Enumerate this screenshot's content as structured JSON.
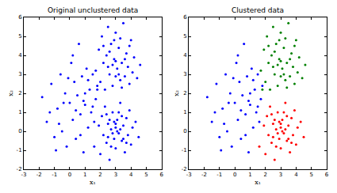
{
  "chart_data": [
    {
      "type": "scatter",
      "title": "Original unclustered data",
      "x_label": "x₁",
      "y_label": "x₂",
      "xlim": [
        -3,
        6
      ],
      "ylim": [
        -2,
        6
      ],
      "xticks": [
        -3,
        -2,
        -1,
        0,
        1,
        2,
        3,
        4,
        5,
        6
      ],
      "yticks": [
        -2,
        -1,
        0,
        1,
        2,
        3,
        4,
        5,
        6
      ],
      "grid": false,
      "series": [
        {
          "color": "#0000ff",
          "marker": "circle",
          "x": [
            -1.8,
            -1.5,
            -1.2,
            -1.0,
            -0.8,
            -0.6,
            -0.5,
            -0.3,
            -0.2,
            0.0,
            0.1,
            0.2,
            0.3,
            0.4,
            0.5,
            0.6,
            0.7,
            0.8,
            0.9,
            1.0,
            1.1,
            1.2,
            1.3,
            1.4,
            1.5,
            1.6,
            1.7,
            1.8,
            -0.9,
            -0.1,
            0.4,
            1.0,
            -1.3,
            0.7,
            1.5,
            -0.4,
            0.2,
            1.2,
            -0.7,
            0.9
          ],
          "y": [
            1.8,
            0.5,
            2.5,
            -0.3,
            1.2,
            3.0,
            0.0,
            2.0,
            -0.8,
            1.5,
            3.6,
            0.6,
            2.6,
            -0.4,
            1.9,
            4.6,
            0.9,
            2.9,
            -1.1,
            1.4,
            3.3,
            0.2,
            2.2,
            1.0,
            3.0,
            0.5,
            1.7,
            2.4,
            -1.0,
            2.8,
            1.1,
            2.0,
            1.0,
            -0.2,
            1.3,
            1.5,
            4.0,
            2.7,
            0.4,
            1.6
          ]
        },
        {
          "color": "#0000ff",
          "marker": "circle",
          "x": [
            1.7,
            1.9,
            2.0,
            2.1,
            2.2,
            2.3,
            2.4,
            2.5,
            2.6,
            2.7,
            2.8,
            2.9,
            3.0,
            3.1,
            3.2,
            3.3,
            3.4,
            3.5,
            3.6,
            3.7,
            3.8,
            3.9,
            4.0,
            4.1,
            4.2,
            4.4,
            2.5,
            3.0,
            3.3,
            2.8,
            3.6,
            2.2,
            4.6,
            1.8,
            3.0,
            3.4,
            2.6,
            3.9,
            3.2,
            2.9
          ],
          "y": [
            3.2,
            4.3,
            2.6,
            5.0,
            3.6,
            2.2,
            4.0,
            5.5,
            3.0,
            4.6,
            2.4,
            3.8,
            5.2,
            3.3,
            4.4,
            2.7,
            3.6,
            5.7,
            2.9,
            4.1,
            3.4,
            2.5,
            4.8,
            3.1,
            3.9,
            2.8,
            3.4,
            2.9,
            4.9,
            3.5,
            3.8,
            4.5,
            3.5,
            2.2,
            3.7,
            2.3,
            4.2,
            4.5,
            3.0,
            4.8
          ]
        },
        {
          "color": "#0000ff",
          "marker": "circle",
          "x": [
            1.6,
            1.9,
            2.0,
            2.1,
            2.2,
            2.3,
            2.4,
            2.5,
            2.6,
            2.7,
            2.8,
            2.9,
            3.0,
            3.0,
            3.1,
            3.2,
            3.3,
            3.4,
            3.5,
            3.6,
            3.7,
            3.8,
            3.9,
            4.0,
            4.1,
            4.3,
            4.5,
            2.8,
            3.1,
            2.9,
            3.3,
            2.7,
            3.2,
            2.5,
            3.5,
            2.4,
            3.0,
            3.4,
            2.6,
            3.7
          ],
          "y": [
            -0.8,
            0.3,
            -1.2,
            0.8,
            -0.2,
            1.3,
            -0.6,
            0.4,
            -1.5,
            0.1,
            1.0,
            -0.4,
            0.2,
            -0.9,
            0.6,
            -0.1,
            1.5,
            -0.5,
            0.3,
            -1.1,
            0.7,
            -0.2,
            1.1,
            -0.7,
            0.2,
            0.5,
            -0.3,
            -0.1,
            0.0,
            0.5,
            0.1,
            -0.8,
            1.0,
            -0.3,
            -0.4,
            0.9,
            0.4,
            0.8,
            0.6,
            -0.6
          ]
        }
      ]
    },
    {
      "type": "scatter",
      "title": "Clustered data",
      "x_label": "x₁",
      "y_label": "x₂",
      "xlim": [
        -3,
        6
      ],
      "ylim": [
        -2,
        6
      ],
      "xticks": [
        -3,
        -2,
        -1,
        0,
        1,
        2,
        3,
        4,
        5,
        6
      ],
      "yticks": [
        -2,
        -1,
        0,
        1,
        2,
        3,
        4,
        5,
        6
      ],
      "grid": false,
      "series": [
        {
          "color": "#0000ff",
          "marker": "circle",
          "x": [
            -1.8,
            -1.5,
            -1.2,
            -1.0,
            -0.8,
            -0.6,
            -0.5,
            -0.3,
            -0.2,
            0.0,
            0.1,
            0.2,
            0.3,
            0.4,
            0.5,
            0.6,
            0.7,
            0.8,
            0.9,
            1.0,
            1.1,
            1.2,
            1.3,
            1.4,
            1.5,
            1.6,
            1.7,
            1.8,
            -0.9,
            -0.1,
            0.4,
            1.0,
            -1.3,
            0.7,
            1.5,
            -0.4,
            0.2,
            1.2,
            -0.7,
            0.9
          ],
          "y": [
            1.8,
            0.5,
            2.5,
            -0.3,
            1.2,
            3.0,
            0.0,
            2.0,
            -0.8,
            1.5,
            3.6,
            0.6,
            2.6,
            -0.4,
            1.9,
            4.6,
            0.9,
            2.9,
            -1.1,
            1.4,
            3.3,
            0.2,
            2.2,
            1.0,
            3.0,
            0.5,
            1.7,
            2.4,
            -1.0,
            2.8,
            1.1,
            2.0,
            1.0,
            -0.2,
            1.3,
            1.5,
            4.0,
            2.7,
            0.4,
            1.6
          ]
        },
        {
          "color": "#008000",
          "marker": "circle",
          "x": [
            1.7,
            1.9,
            2.0,
            2.1,
            2.2,
            2.3,
            2.4,
            2.5,
            2.6,
            2.7,
            2.8,
            2.9,
            3.0,
            3.1,
            3.2,
            3.3,
            3.4,
            3.5,
            3.6,
            3.7,
            3.8,
            3.9,
            4.0,
            4.1,
            4.2,
            4.4,
            2.5,
            3.0,
            3.3,
            2.8,
            3.6,
            2.2,
            4.6,
            1.8,
            3.0,
            3.4,
            2.6,
            3.9,
            3.2,
            2.9
          ],
          "y": [
            3.2,
            4.3,
            2.6,
            5.0,
            3.6,
            2.2,
            4.0,
            5.5,
            3.0,
            4.6,
            2.4,
            3.8,
            5.2,
            3.3,
            4.4,
            2.7,
            3.6,
            5.7,
            2.9,
            4.1,
            3.4,
            2.5,
            4.8,
            3.1,
            3.9,
            2.8,
            3.4,
            2.9,
            4.9,
            3.5,
            3.8,
            4.5,
            3.5,
            2.2,
            3.7,
            2.3,
            4.2,
            4.5,
            3.0,
            4.8
          ]
        },
        {
          "color": "#ff0000",
          "marker": "circle",
          "x": [
            1.6,
            1.9,
            2.0,
            2.1,
            2.2,
            2.3,
            2.4,
            2.5,
            2.6,
            2.7,
            2.8,
            2.9,
            3.0,
            3.0,
            3.1,
            3.2,
            3.3,
            3.4,
            3.5,
            3.6,
            3.7,
            3.8,
            3.9,
            4.0,
            4.1,
            4.3,
            4.5,
            2.8,
            3.1,
            2.9,
            3.3,
            2.7,
            3.2,
            2.5,
            3.5,
            2.4,
            3.0,
            3.4,
            2.6,
            3.7
          ],
          "y": [
            -0.8,
            0.3,
            -1.2,
            0.8,
            -0.2,
            1.3,
            -0.6,
            0.4,
            -1.5,
            0.1,
            1.0,
            -0.4,
            0.2,
            -0.9,
            0.6,
            -0.1,
            1.5,
            -0.5,
            0.3,
            -1.1,
            0.7,
            -0.2,
            1.1,
            -0.7,
            0.2,
            0.5,
            -0.3,
            -0.1,
            0.0,
            0.5,
            0.1,
            -0.8,
            1.0,
            -0.3,
            -0.4,
            0.9,
            0.4,
            0.8,
            0.6,
            -0.6
          ]
        }
      ]
    }
  ]
}
